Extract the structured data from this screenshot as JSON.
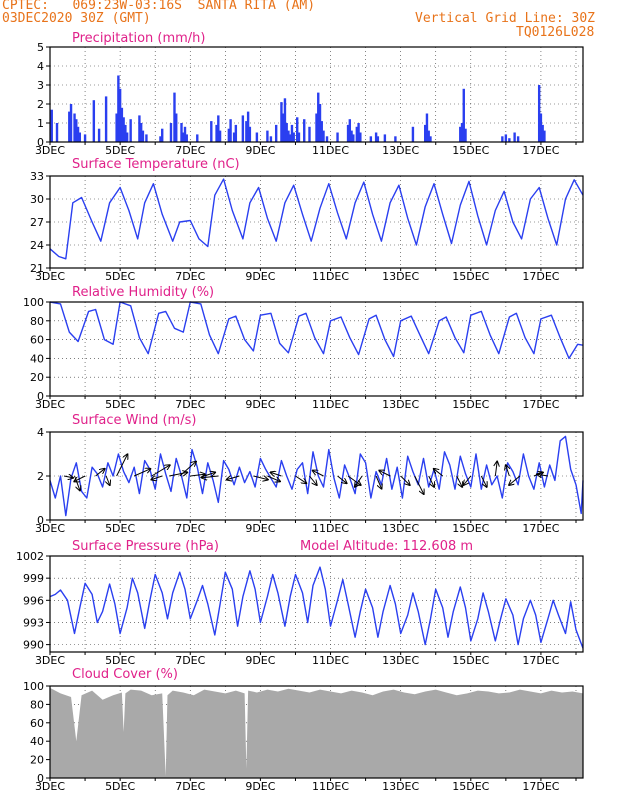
{
  "header": {
    "line1": "CPTEC:   069:23W-03:16S  SANTA RITA (AM)",
    "line2": "03DEC2020 30Z (GMT)",
    "right1": "Vertical Grid Line: 30Z",
    "right2": "TQ0126L028",
    "header_color": "#e8731a"
  },
  "colors": {
    "title": "#e0218a",
    "line": "#2a3ff0",
    "bar": "#2a3ff0",
    "cloud": "#a9a9a9",
    "grid": "#333333",
    "arrow": "#000000"
  },
  "x_day_range": [
    3,
    18.2
  ],
  "x_ticks": [
    "3DEC",
    "5DEC",
    "7DEC",
    "9DEC",
    "11DEC",
    "13DEC",
    "15DEC",
    "17DEC"
  ],
  "chart_data": [
    {
      "type": "bar",
      "title": "Precipitation (mm/h)",
      "ylim": [
        0,
        5
      ],
      "yticks": [
        "0",
        "1",
        "2",
        "3",
        "4",
        "5"
      ],
      "x_days": [
        3.05,
        3.2,
        3.55,
        3.6,
        3.7,
        3.75,
        3.8,
        3.85,
        4.0,
        4.25,
        4.4,
        4.6,
        4.9,
        4.95,
        5.0,
        5.05,
        5.1,
        5.15,
        5.2,
        5.3,
        5.55,
        5.6,
        5.65,
        5.75,
        6.15,
        6.2,
        6.45,
        6.55,
        6.6,
        6.75,
        6.8,
        6.85,
        6.9,
        7.2,
        7.6,
        7.75,
        7.8,
        7.85,
        8.1,
        8.15,
        8.25,
        8.3,
        8.5,
        8.6,
        8.65,
        8.7,
        8.9,
        9.2,
        9.3,
        9.45,
        9.6,
        9.65,
        9.7,
        9.75,
        9.8,
        9.85,
        9.9,
        9.95,
        10.05,
        10.1,
        10.25,
        10.4,
        10.6,
        10.65,
        10.7,
        10.75,
        10.8,
        10.9,
        11.2,
        11.5,
        11.55,
        11.6,
        11.65,
        11.75,
        11.8,
        11.85,
        12.15,
        12.3,
        12.35,
        12.55,
        12.85,
        13.35,
        13.7,
        13.75,
        13.8,
        13.85,
        14.7,
        14.75,
        14.8,
        14.85,
        15.9,
        16.0,
        16.1,
        16.25,
        16.35,
        16.95,
        17.0,
        17.05,
        17.1
      ],
      "values": [
        1.7,
        1.0,
        1.6,
        2.0,
        1.5,
        1.2,
        0.8,
        0.5,
        0.4,
        2.2,
        0.7,
        2.4,
        1.5,
        3.5,
        2.8,
        1.8,
        1.3,
        0.9,
        0.5,
        1.2,
        1.4,
        1.0,
        0.6,
        0.4,
        0.3,
        0.7,
        1.0,
        2.6,
        1.5,
        1.0,
        0.5,
        0.8,
        0.4,
        0.4,
        1.1,
        0.9,
        1.4,
        0.6,
        0.7,
        1.2,
        0.5,
        0.9,
        1.4,
        1.1,
        1.6,
        0.8,
        0.5,
        0.6,
        0.3,
        0.9,
        2.1,
        1.5,
        2.3,
        1.0,
        0.6,
        0.4,
        0.9,
        0.5,
        1.3,
        0.5,
        1.2,
        0.8,
        1.5,
        2.6,
        2.0,
        1.1,
        0.6,
        0.3,
        0.5,
        0.9,
        1.2,
        0.6,
        0.4,
        0.8,
        1.0,
        0.5,
        0.3,
        0.5,
        0.3,
        0.4,
        0.3,
        0.8,
        0.9,
        1.5,
        0.6,
        0.3,
        0.8,
        1.0,
        2.8,
        0.7,
        0.3,
        0.4,
        0.2,
        0.5,
        0.3,
        3.0,
        1.5,
        0.9,
        0.6
      ]
    },
    {
      "type": "line",
      "title": "Surface Temperature (nC)",
      "ylim": [
        21,
        33
      ],
      "yticks": [
        "21",
        "24",
        "27",
        "30",
        "33"
      ],
      "x_days": [
        3.0,
        3.25,
        3.45,
        3.65,
        3.9,
        4.2,
        4.45,
        4.7,
        5.0,
        5.25,
        5.5,
        5.7,
        5.95,
        6.2,
        6.5,
        6.7,
        7.0,
        7.25,
        7.5,
        7.7,
        7.95,
        8.2,
        8.5,
        8.7,
        8.95,
        9.2,
        9.45,
        9.7,
        9.95,
        10.2,
        10.45,
        10.7,
        10.95,
        11.2,
        11.45,
        11.7,
        11.95,
        12.2,
        12.45,
        12.7,
        12.95,
        13.2,
        13.45,
        13.7,
        13.95,
        14.2,
        14.45,
        14.7,
        14.95,
        15.2,
        15.45,
        15.7,
        15.95,
        16.2,
        16.45,
        16.7,
        16.95,
        17.2,
        17.45,
        17.7,
        17.95,
        18.2
      ],
      "values": [
        23.5,
        22.5,
        22.2,
        29.5,
        30.2,
        27.0,
        24.5,
        29.5,
        31.5,
        28.5,
        24.8,
        29.5,
        32.0,
        28.0,
        24.5,
        27.0,
        27.2,
        24.8,
        23.8,
        30.5,
        32.6,
        28.5,
        24.8,
        29.5,
        31.5,
        27.5,
        24.5,
        29.5,
        31.8,
        28.0,
        24.5,
        28.8,
        32.0,
        28.2,
        24.8,
        29.5,
        32.2,
        28.0,
        24.5,
        29.5,
        31.8,
        27.5,
        24.0,
        29.0,
        32.0,
        28.0,
        24.2,
        29.2,
        32.3,
        27.8,
        24.0,
        28.5,
        31.0,
        27.0,
        24.8,
        30.0,
        31.5,
        27.5,
        24.0,
        30.0,
        32.5,
        30.5
      ]
    },
    {
      "type": "line",
      "title": "Relative Humidity (%)",
      "ylim": [
        0,
        100
      ],
      "yticks": [
        "0",
        "20",
        "40",
        "60",
        "80",
        "100"
      ],
      "x_days": [
        3.0,
        3.3,
        3.55,
        3.8,
        4.1,
        4.3,
        4.55,
        4.8,
        5.0,
        5.3,
        5.55,
        5.8,
        6.1,
        6.3,
        6.55,
        6.8,
        7.0,
        7.3,
        7.55,
        7.8,
        8.1,
        8.3,
        8.55,
        8.8,
        9.0,
        9.3,
        9.55,
        9.8,
        10.1,
        10.3,
        10.55,
        10.8,
        11.0,
        11.3,
        11.55,
        11.8,
        12.1,
        12.3,
        12.55,
        12.8,
        13.0,
        13.3,
        13.55,
        13.8,
        14.1,
        14.3,
        14.55,
        14.8,
        15.0,
        15.3,
        15.55,
        15.8,
        16.1,
        16.3,
        16.55,
        16.8,
        17.0,
        17.3,
        17.55,
        17.8,
        18.05,
        18.2
      ],
      "values": [
        100,
        98,
        68,
        58,
        90,
        92,
        60,
        55,
        100,
        96,
        62,
        45,
        88,
        90,
        72,
        68,
        100,
        98,
        65,
        45,
        82,
        85,
        60,
        48,
        86,
        88,
        56,
        46,
        85,
        88,
        62,
        45,
        80,
        84,
        62,
        44,
        82,
        86,
        60,
        42,
        80,
        85,
        65,
        45,
        80,
        84,
        62,
        46,
        86,
        90,
        65,
        45,
        84,
        88,
        62,
        45,
        82,
        86,
        62,
        40,
        55,
        54
      ]
    },
    {
      "type": "line",
      "title": "Surface Wind (m/s)",
      "ylim": [
        0,
        4
      ],
      "yticks": [
        "0",
        "2",
        "4"
      ],
      "x_days": [
        3.0,
        3.15,
        3.3,
        3.45,
        3.6,
        3.75,
        3.9,
        4.05,
        4.2,
        4.35,
        4.5,
        4.65,
        4.8,
        4.95,
        5.1,
        5.25,
        5.4,
        5.55,
        5.7,
        5.85,
        6.0,
        6.15,
        6.3,
        6.45,
        6.6,
        6.75,
        6.9,
        7.05,
        7.2,
        7.35,
        7.5,
        7.65,
        7.8,
        7.95,
        8.1,
        8.25,
        8.4,
        8.55,
        8.7,
        8.85,
        9.0,
        9.15,
        9.3,
        9.45,
        9.6,
        9.75,
        9.9,
        10.05,
        10.2,
        10.35,
        10.5,
        10.65,
        10.8,
        10.95,
        11.1,
        11.25,
        11.4,
        11.55,
        11.7,
        11.85,
        12.0,
        12.15,
        12.3,
        12.45,
        12.6,
        12.75,
        12.9,
        13.05,
        13.2,
        13.35,
        13.5,
        13.65,
        13.8,
        13.95,
        14.1,
        14.25,
        14.4,
        14.55,
        14.7,
        14.85,
        15.0,
        15.15,
        15.3,
        15.45,
        15.6,
        15.75,
        15.9,
        16.05,
        16.2,
        16.35,
        16.5,
        16.65,
        16.8,
        16.95,
        17.1,
        17.25,
        17.4,
        17.55,
        17.7,
        17.85,
        18.0,
        18.15,
        18.2
      ],
      "values": [
        1.8,
        1.0,
        2.0,
        0.2,
        1.9,
        2.6,
        1.3,
        1.0,
        2.4,
        2.1,
        1.5,
        2.6,
        2.0,
        3.0,
        2.2,
        1.7,
        2.4,
        1.2,
        2.7,
        2.3,
        1.4,
        3.0,
        2.1,
        1.3,
        2.8,
        2.0,
        1.0,
        3.2,
        2.4,
        1.2,
        2.6,
        1.8,
        0.8,
        2.7,
        2.3,
        1.6,
        2.4,
        1.7,
        2.2,
        1.5,
        2.8,
        2.3,
        1.9,
        1.5,
        2.7,
        2.0,
        1.4,
        2.3,
        2.6,
        1.2,
        3.1,
        2.0,
        1.5,
        3.2,
        1.9,
        1.0,
        2.5,
        1.9,
        1.2,
        3.0,
        2.6,
        1.0,
        2.2,
        1.6,
        2.8,
        1.4,
        2.4,
        1.0,
        2.9,
        2.2,
        1.6,
        2.8,
        1.5,
        2.3,
        1.4,
        3.1,
        2.5,
        1.4,
        2.9,
        2.1,
        1.5,
        3.0,
        1.4,
        2.5,
        1.6,
        2.0,
        1.0,
        2.6,
        2.2,
        1.6,
        3.0,
        2.0,
        1.4,
        2.6,
        1.5,
        2.5,
        1.8,
        3.6,
        3.8,
        2.3,
        1.6,
        0.3,
        1.8
      ],
      "arrows": [
        {
          "day": 3.4,
          "u": 0.5,
          "v": -0.1
        },
        {
          "day": 3.7,
          "u": 0.3,
          "v": -0.8
        },
        {
          "day": 4.0,
          "u": -0.6,
          "v": -0.3
        },
        {
          "day": 4.3,
          "u": 0.5,
          "v": 0.4
        },
        {
          "day": 4.6,
          "u": 0.2,
          "v": -0.5
        },
        {
          "day": 4.9,
          "u": 0.6,
          "v": 1.2
        },
        {
          "day": 5.4,
          "u": 0.9,
          "v": 0.4
        },
        {
          "day": 5.9,
          "u": 1.0,
          "v": 0.6
        },
        {
          "day": 6.2,
          "u": -0.6,
          "v": -0.2
        },
        {
          "day": 6.4,
          "u": 1.0,
          "v": 0.2
        },
        {
          "day": 6.7,
          "u": 0.9,
          "v": 0.8
        },
        {
          "day": 7.0,
          "u": 0.8,
          "v": 0.1
        },
        {
          "day": 7.4,
          "u": 0.6,
          "v": 0.2
        },
        {
          "day": 7.8,
          "u": -0.9,
          "v": -0.1
        },
        {
          "day": 8.4,
          "u": -0.7,
          "v": -0.2
        },
        {
          "day": 8.8,
          "u": 0.8,
          "v": -0.2
        },
        {
          "day": 9.2,
          "u": 0.7,
          "v": -0.3
        },
        {
          "day": 9.6,
          "u": -0.6,
          "v": 0.2
        },
        {
          "day": 10.0,
          "u": 0.6,
          "v": -0.4
        },
        {
          "day": 10.4,
          "u": 0.4,
          "v": -0.5
        },
        {
          "day": 10.8,
          "u": -0.6,
          "v": 0.3
        },
        {
          "day": 11.2,
          "u": 0.5,
          "v": -0.4
        },
        {
          "day": 11.5,
          "u": 0.7,
          "v": -0.5
        },
        {
          "day": 11.9,
          "u": -0.4,
          "v": -0.6
        },
        {
          "day": 12.3,
          "u": 0.3,
          "v": -0.7
        },
        {
          "day": 12.7,
          "u": -0.6,
          "v": 0.3
        },
        {
          "day": 13.0,
          "u": 0.5,
          "v": -0.5
        },
        {
          "day": 13.4,
          "u": 0.5,
          "v": -1.0
        },
        {
          "day": 13.8,
          "u": 0.3,
          "v": -0.6
        },
        {
          "day": 14.2,
          "u": -0.5,
          "v": 0.4
        },
        {
          "day": 14.6,
          "u": 0.3,
          "v": -0.6
        },
        {
          "day": 15.0,
          "u": -0.4,
          "v": -0.5
        },
        {
          "day": 15.3,
          "u": 0.3,
          "v": -0.6
        },
        {
          "day": 15.7,
          "u": 0.1,
          "v": 0.8
        },
        {
          "day": 16.1,
          "u": -0.2,
          "v": 0.6
        },
        {
          "day": 16.4,
          "u": -0.6,
          "v": -0.5
        },
        {
          "day": 16.8,
          "u": 0.5,
          "v": 0.2
        },
        {
          "day": 17.2,
          "u": -0.6,
          "v": 0.1
        }
      ]
    },
    {
      "type": "line",
      "title": "Surface Pressure (hPa)",
      "note": "Model Altitude: 112.608 m",
      "ylim": [
        989,
        1002
      ],
      "yticks": [
        "990",
        "993",
        "996",
        "999",
        "1002"
      ],
      "x_days": [
        3.0,
        3.15,
        3.3,
        3.5,
        3.7,
        3.85,
        4.0,
        4.2,
        4.35,
        4.5,
        4.7,
        4.85,
        5.0,
        5.2,
        5.35,
        5.5,
        5.7,
        5.85,
        6.0,
        6.2,
        6.35,
        6.5,
        6.7,
        6.85,
        7.0,
        7.2,
        7.35,
        7.5,
        7.7,
        7.85,
        8.0,
        8.2,
        8.35,
        8.5,
        8.7,
        8.85,
        9.0,
        9.2,
        9.35,
        9.5,
        9.7,
        9.85,
        10.0,
        10.2,
        10.35,
        10.5,
        10.7,
        10.85,
        11.0,
        11.2,
        11.35,
        11.5,
        11.7,
        11.85,
        12.0,
        12.2,
        12.35,
        12.5,
        12.7,
        12.85,
        13.0,
        13.2,
        13.35,
        13.5,
        13.7,
        13.85,
        14.0,
        14.2,
        14.35,
        14.5,
        14.7,
        14.85,
        15.0,
        15.2,
        15.35,
        15.5,
        15.7,
        15.85,
        16.0,
        16.2,
        16.35,
        16.5,
        16.7,
        16.85,
        17.0,
        17.2,
        17.35,
        17.5,
        17.7,
        17.85,
        18.0,
        18.2
      ],
      "values": [
        996.5,
        996.8,
        997.4,
        996.0,
        991.5,
        995.0,
        998.3,
        996.8,
        993.0,
        994.5,
        998.2,
        995.5,
        991.5,
        995.0,
        999.0,
        997.0,
        992.2,
        996.0,
        999.5,
        997.0,
        993.5,
        997.0,
        999.8,
        997.5,
        993.5,
        996.0,
        998.0,
        995.5,
        991.3,
        995.5,
        999.8,
        997.5,
        992.5,
        996.5,
        1000.0,
        997.5,
        993.0,
        996.5,
        999.5,
        997.0,
        992.5,
        996.5,
        999.5,
        997.0,
        993.0,
        998.0,
        1000.5,
        997.5,
        992.5,
        996.0,
        998.8,
        995.5,
        991.0,
        994.5,
        997.5,
        995.0,
        991.0,
        994.5,
        998.0,
        995.5,
        991.5,
        994.0,
        997.0,
        994.5,
        990.0,
        993.5,
        997.5,
        995.0,
        991.0,
        994.5,
        997.8,
        995.0,
        990.5,
        993.5,
        997.0,
        994.5,
        990.5,
        993.5,
        996.2,
        994.0,
        990.0,
        993.5,
        996.0,
        994.0,
        990.3,
        993.5,
        996.0,
        994.0,
        991.5,
        995.8,
        992.0,
        989.5
      ]
    },
    {
      "type": "area",
      "title": "Cloud Cover (%)",
      "ylim": [
        0,
        100
      ],
      "yticks": [
        "0",
        "20",
        "40",
        "60",
        "80",
        "100"
      ],
      "x_days": [
        3.0,
        3.3,
        3.6,
        3.75,
        3.9,
        4.2,
        4.5,
        4.8,
        5.05,
        5.1,
        5.15,
        5.3,
        5.6,
        5.9,
        6.2,
        6.3,
        6.35,
        6.5,
        6.8,
        7.1,
        7.4,
        7.7,
        8.0,
        8.3,
        8.55,
        8.6,
        8.65,
        8.9,
        9.2,
        9.5,
        9.8,
        10.1,
        10.4,
        10.7,
        11.0,
        11.3,
        11.6,
        11.9,
        12.2,
        12.5,
        12.8,
        13.1,
        13.4,
        13.7,
        14.0,
        14.3,
        14.6,
        14.9,
        15.2,
        15.5,
        15.8,
        16.1,
        16.4,
        16.7,
        17.0,
        17.3,
        17.6,
        17.9,
        18.2
      ],
      "values": [
        98,
        92,
        88,
        40,
        90,
        95,
        85,
        90,
        93,
        50,
        92,
        96,
        95,
        90,
        92,
        2,
        90,
        95,
        93,
        90,
        96,
        94,
        92,
        95,
        92,
        10,
        95,
        93,
        96,
        94,
        97,
        95,
        93,
        96,
        94,
        92,
        95,
        93,
        90,
        94,
        96,
        93,
        91,
        94,
        96,
        93,
        90,
        92,
        95,
        94,
        92,
        93,
        96,
        94,
        92,
        95,
        93,
        94,
        92
      ]
    }
  ]
}
